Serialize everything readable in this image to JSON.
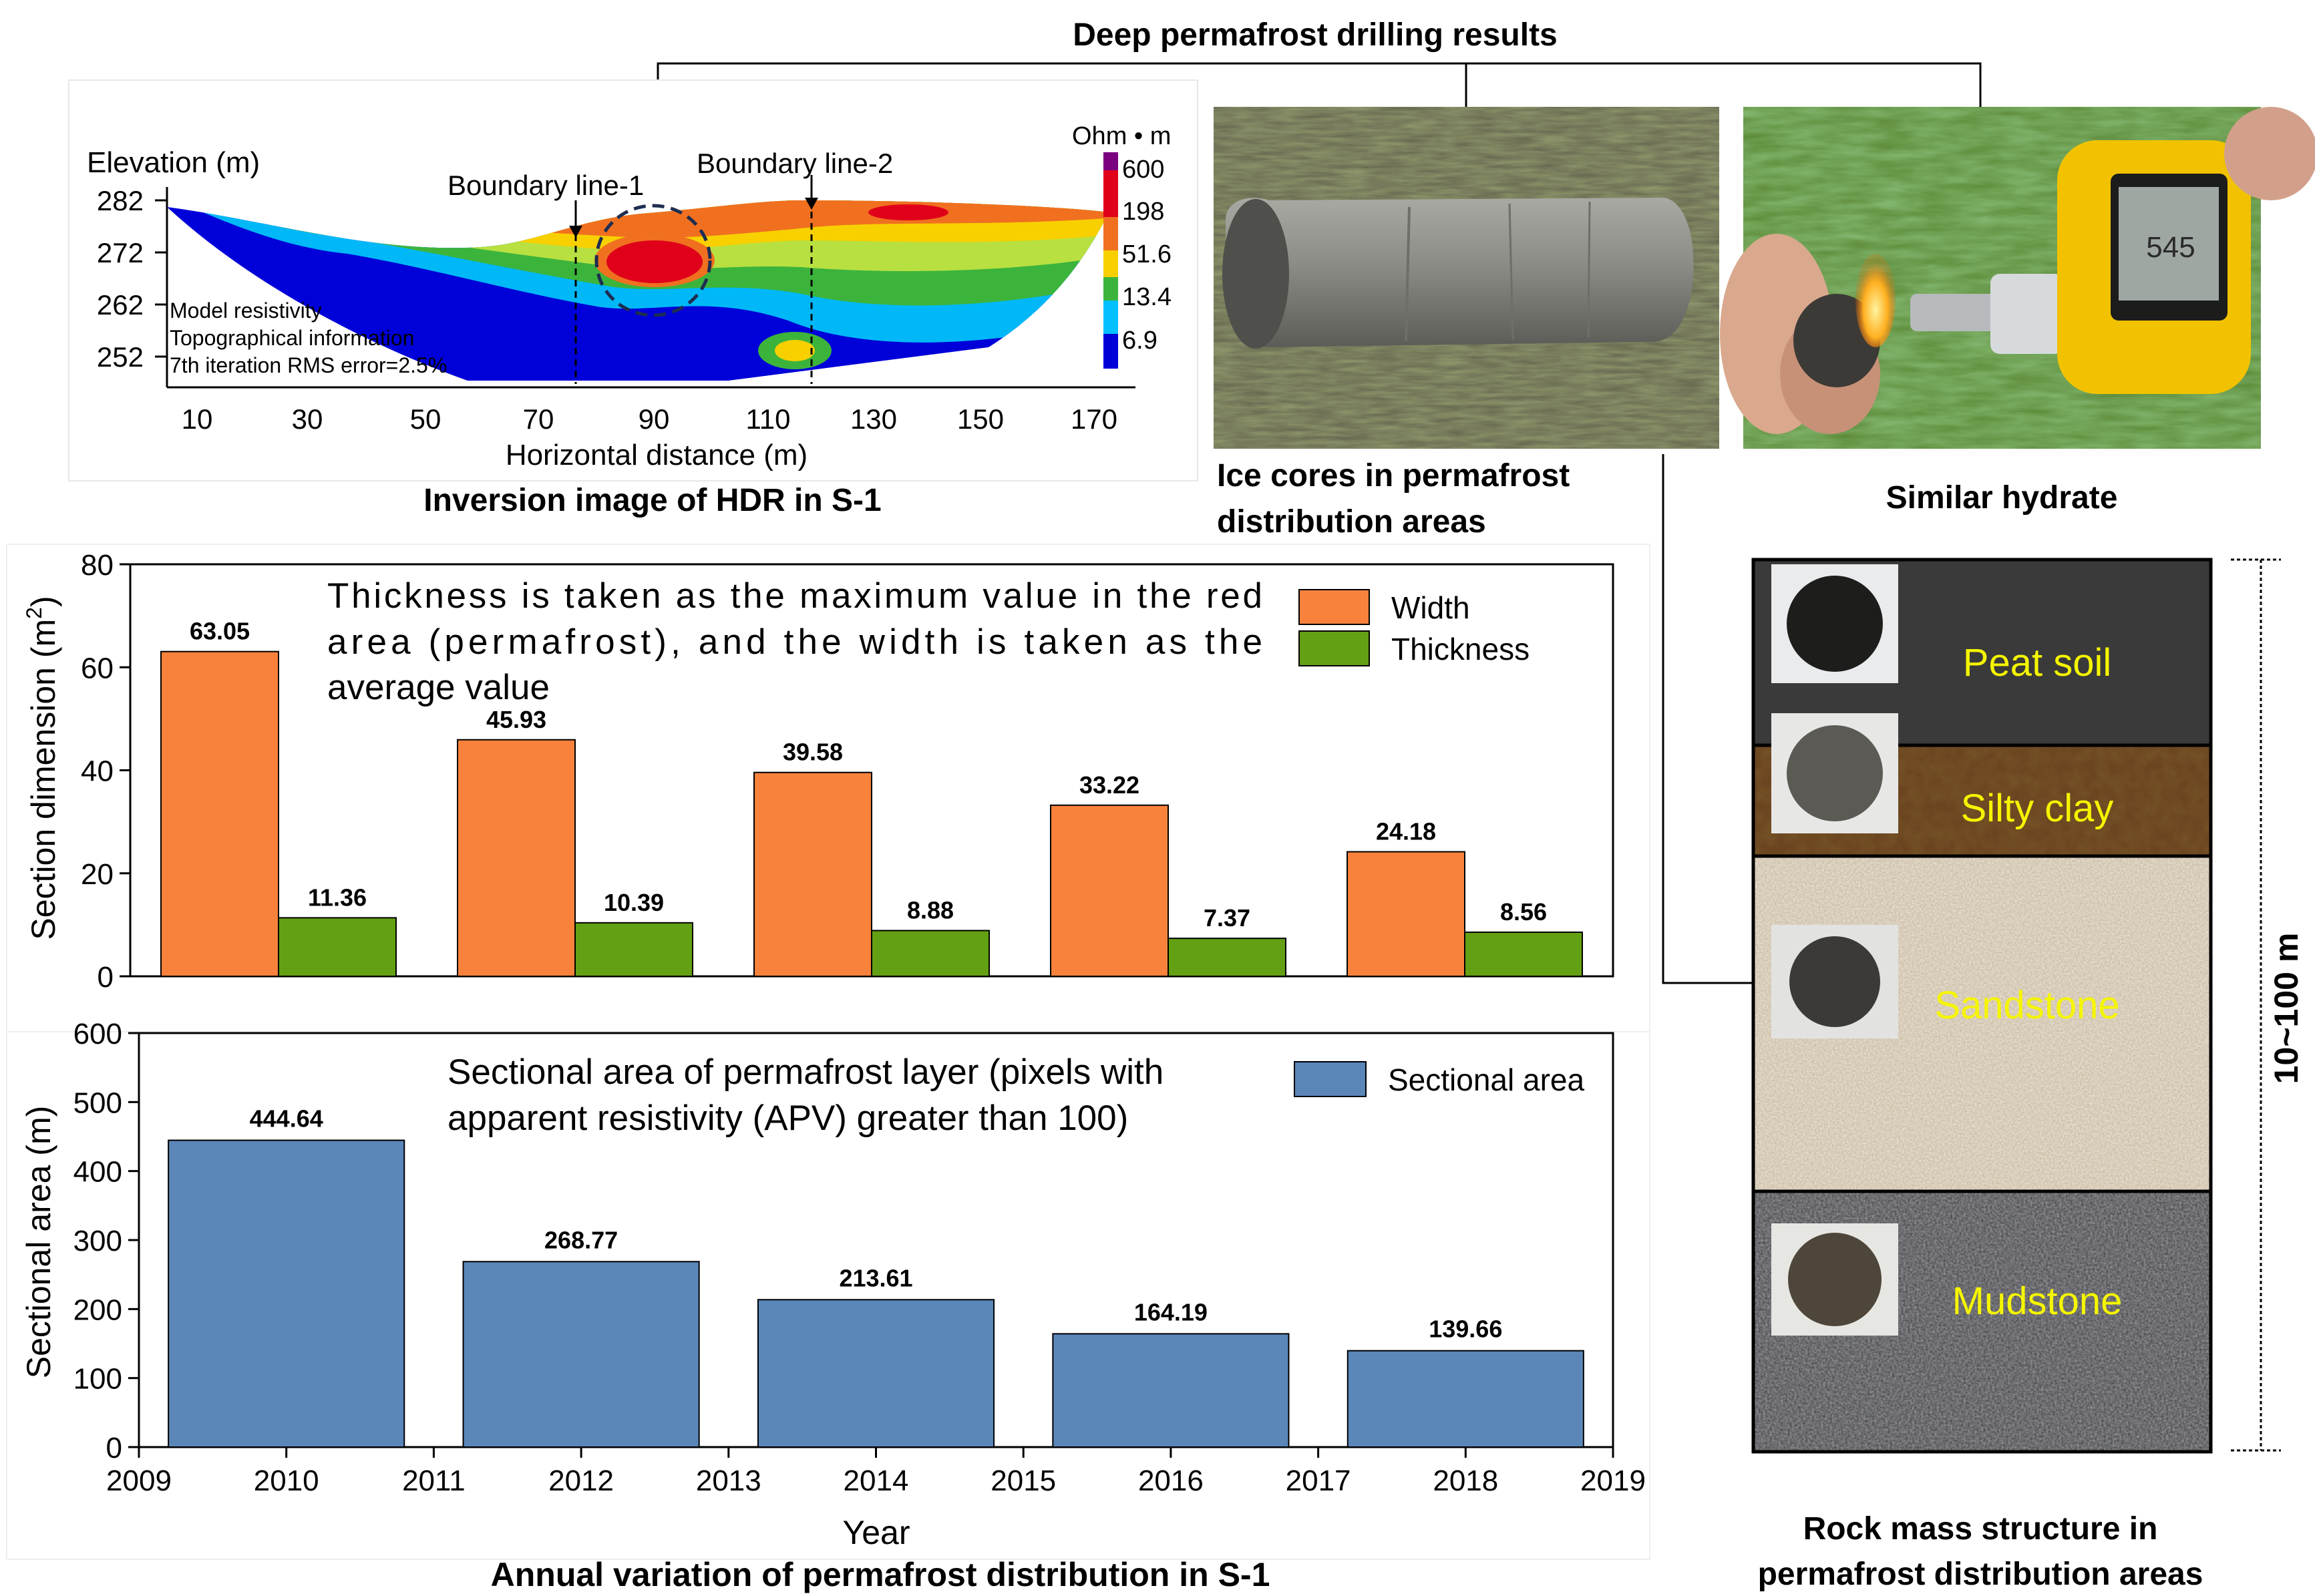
{
  "title": "Deep permafrost drilling results",
  "hdr": {
    "caption": "Inversion image of HDR in S-1",
    "ylabel": "Elevation (m)",
    "xlabel": "Horizontal distance (m)",
    "yticks": [
      "282",
      "272",
      "262",
      "252"
    ],
    "xticks": [
      "10",
      "30",
      "50",
      "70",
      "90",
      "110",
      "130",
      "150",
      "170"
    ],
    "boundary1": "Boundary line-1",
    "boundary2": "Boundary line-2",
    "legend_unit": "Ohm • m",
    "legend_values": [
      "600",
      "198",
      "51.6",
      "13.4",
      "6.9"
    ],
    "legend_colors": [
      "#7a0080",
      "#e0001a",
      "#f07020",
      "#f8d000",
      "#3cb43c",
      "#00c0ff",
      "#0000d8"
    ],
    "note_lines": [
      "Model resistivity",
      "Topographical information",
      "7th iteration RMS error=2.5%"
    ]
  },
  "photos": {
    "ice_caption_1": "Ice cores in permafrost",
    "ice_caption_2": "distribution areas",
    "hydrate_caption": "Similar hydrate",
    "device_reading": "545"
  },
  "rock": {
    "layers": [
      "Peat soil",
      "Silty clay",
      "Sandstone",
      "Mudstone"
    ],
    "depth_label": "10~100 m",
    "caption_1": "Rock mass structure in",
    "caption_2": "permafrost distribution areas"
  },
  "chart_top": {
    "annotation_1": "Thickness is taken as the maximum value in the red",
    "annotation_2": "area (permafrost), and the width is taken as the",
    "annotation_3": "average value",
    "ylabel": "Section dimension (m",
    "ylabel_sup": "2",
    "ylabel_end": ")",
    "yticks": [
      "0",
      "20",
      "40",
      "60",
      "80"
    ]
  },
  "chart_bottom": {
    "annotation_1": "Sectional area of permafrost layer (pixels with",
    "annotation_2": "apparent resistivity (APV) greater than 100)",
    "ylabel": "Sectional area (m)",
    "yticks": [
      "0",
      "100",
      "200",
      "300",
      "400",
      "500",
      "600"
    ],
    "xticks": [
      "2009",
      "2010",
      "2011",
      "2012",
      "2013",
      "2014",
      "2015",
      "2016",
      "2017",
      "2018",
      "2019"
    ],
    "xlabel": "Year"
  },
  "bottom_caption": "Annual variation of permafrost distribution in S-1",
  "chart_data": [
    {
      "type": "bar",
      "categories": [
        "2010",
        "2012",
        "2014",
        "2016",
        "2018"
      ],
      "series": [
        {
          "name": "Width",
          "values": [
            63.05,
            45.93,
            39.58,
            33.22,
            24.18
          ],
          "color": "#f8823c"
        },
        {
          "name": "Thickness",
          "values": [
            11.36,
            10.39,
            8.88,
            7.37,
            8.56
          ],
          "color": "#64a014"
        }
      ],
      "value_labels": [
        [
          "63.05",
          "45.93",
          "39.58",
          "33.22",
          "24.18"
        ],
        [
          "11.36",
          "10.39",
          "8.88",
          "7.37",
          "8.56"
        ]
      ],
      "ylim": [
        0,
        80
      ],
      "legend_position": "top-right"
    },
    {
      "type": "bar",
      "categories": [
        "2010",
        "2012",
        "2014",
        "2016",
        "2018"
      ],
      "series": [
        {
          "name": "Sectional area",
          "values": [
            444.64,
            268.77,
            213.61,
            164.19,
            139.66
          ],
          "color": "#5b86b8"
        }
      ],
      "value_labels": [
        "444.64",
        "268.77",
        "213.61",
        "164.19",
        "139.66"
      ],
      "xlim": [
        2009,
        2019
      ],
      "ylim": [
        0,
        600
      ],
      "legend_position": "top-right"
    }
  ]
}
